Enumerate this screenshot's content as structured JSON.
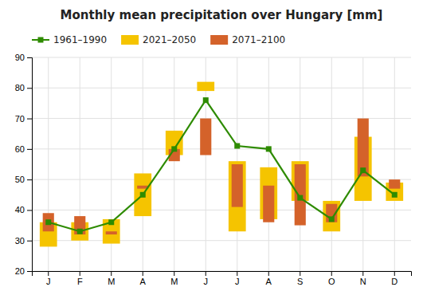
{
  "chart_data": {
    "type": "bar",
    "title": "Monthly mean precipitation over Hungary [mm]",
    "categories": [
      "J",
      "F",
      "M",
      "A",
      "M",
      "J",
      "J",
      "A",
      "S",
      "O",
      "N",
      "D"
    ],
    "series": [
      {
        "name": "1961–1990",
        "type": "line",
        "color": "#2e8b00",
        "marker": "square",
        "values": [
          36,
          33,
          36,
          45,
          60,
          76,
          61,
          60,
          44,
          37,
          53,
          45
        ]
      },
      {
        "name": "2021–2050",
        "type": "bar",
        "color": "#f5c400",
        "low": [
          28,
          30,
          29,
          38,
          58,
          79,
          33,
          37,
          43,
          33,
          43,
          43
        ],
        "high": [
          36,
          36,
          37,
          52,
          66,
          82,
          56,
          54,
          56,
          43,
          64,
          49
        ]
      },
      {
        "name": "2071–2100",
        "type": "bar",
        "color": "#d4622a",
        "low": [
          33,
          32,
          32,
          47,
          56,
          58,
          41,
          36,
          35,
          36,
          51,
          47
        ],
        "high": [
          39,
          38,
          33,
          48,
          60,
          70,
          55,
          48,
          55,
          42,
          70,
          50
        ]
      }
    ],
    "ylim": [
      20,
      90
    ],
    "yticks": [
      20,
      30,
      40,
      50,
      60,
      70,
      80,
      90
    ],
    "grid": true,
    "legend": "upper left"
  }
}
